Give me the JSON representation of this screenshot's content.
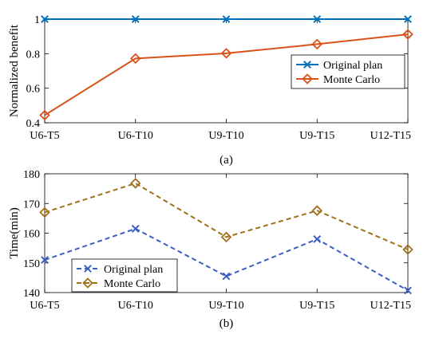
{
  "chart_data": [
    {
      "type": "line",
      "caption": "(a)",
      "categories": [
        "U6-T5",
        "U6-T10",
        "U9-T10",
        "U9-T15",
        "U12-T15"
      ],
      "ylabel": "Normalized benefit",
      "xlabel": "",
      "ylim": [
        0.4,
        1.0
      ],
      "yticks": [
        0.4,
        0.6,
        0.8,
        1
      ],
      "ytick_labels": [
        "0.4",
        "0.6",
        "0.8",
        "1"
      ],
      "grid": false,
      "legend_position": "center-right",
      "series": [
        {
          "name": "Original plan",
          "values": [
            1,
            1,
            1,
            1,
            1
          ],
          "color": "#0072BD",
          "marker": "x",
          "style": "solid"
        },
        {
          "name": "Monte Carlo",
          "values": [
            0.444,
            0.772,
            0.802,
            0.855,
            0.912
          ],
          "color": "#D95319",
          "marker": "diamond",
          "style": "solid"
        }
      ]
    },
    {
      "type": "line",
      "caption": "(b)",
      "categories": [
        "U6-T5",
        "U6-T10",
        "U9-T10",
        "U9-T15",
        "U12-T15"
      ],
      "ylabel": "Time(min)",
      "xlabel": "",
      "ylim": [
        140,
        180
      ],
      "yticks": [
        140,
        150,
        160,
        170,
        180
      ],
      "ytick_labels": [
        "140",
        "150",
        "160",
        "170",
        "180"
      ],
      "grid": false,
      "legend_position": "bottom-left",
      "series": [
        {
          "name": "Original plan",
          "values": [
            151,
            161.5,
            145.5,
            158,
            140.7
          ],
          "color": "#3B5FC0",
          "marker": "x",
          "style": "dashed"
        },
        {
          "name": "Monte Carlo",
          "values": [
            167,
            176.8,
            158.7,
            167.6,
            154.5
          ],
          "color": "#A0701A",
          "marker": "diamond",
          "style": "dashed"
        }
      ]
    }
  ]
}
